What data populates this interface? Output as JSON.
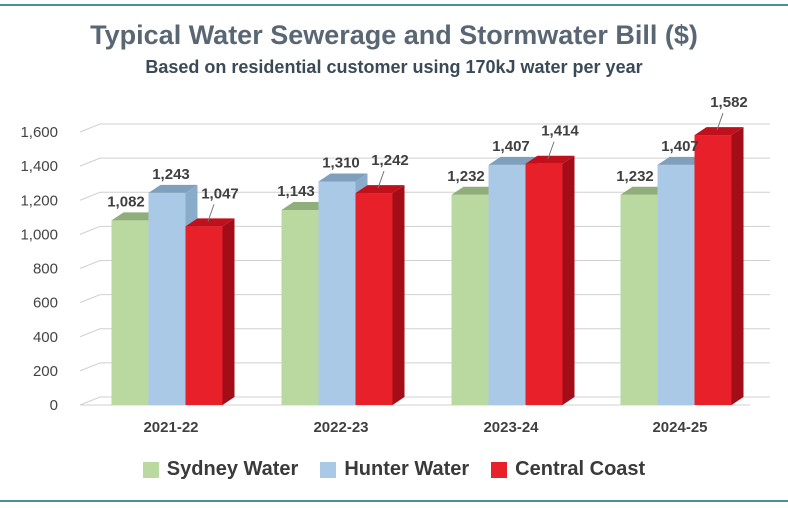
{
  "chart_data": {
    "type": "bar",
    "title": "Typical Water Sewerage and Stormwater Bill ($)",
    "subtitle": "Based on residential customer using 170kJ water per year",
    "categories": [
      "2021-22",
      "2022-23",
      "2023-24",
      "2024-25"
    ],
    "series": [
      {
        "name": "Sydney Water",
        "values": [
          1082,
          1143,
          1232,
          1232
        ],
        "labels": [
          "1,082",
          "1,143",
          "1,232",
          "1,232"
        ],
        "color": "#b9d9a1",
        "top_color": "#8fae7a",
        "side_color": "#97b882"
      },
      {
        "name": "Hunter Water",
        "values": [
          1243,
          1310,
          1407,
          1407
        ],
        "labels": [
          "1,243",
          "1,310",
          "1,407",
          "1,407"
        ],
        "color": "#a9c9e6",
        "top_color": "#7f9fbd",
        "side_color": "#8aaccb"
      },
      {
        "name": "Central Coast",
        "values": [
          1047,
          1242,
          1414,
          1582
        ],
        "labels": [
          "1,047",
          "1,242",
          "1,414",
          "1,582"
        ],
        "color": "#e8202a",
        "top_color": "#c0101c",
        "side_color": "#a30d18"
      }
    ],
    "ylim": [
      0,
      1600
    ],
    "yticks": [
      0,
      200,
      400,
      600,
      800,
      1000,
      1200,
      1400,
      1600
    ],
    "ytick_labels": [
      "0",
      "200",
      "400",
      "600",
      "800",
      "1,000",
      "1,200",
      "1,400",
      "1,600"
    ],
    "grid": true,
    "legend": "bottom",
    "xlabel": "",
    "ylabel": ""
  }
}
